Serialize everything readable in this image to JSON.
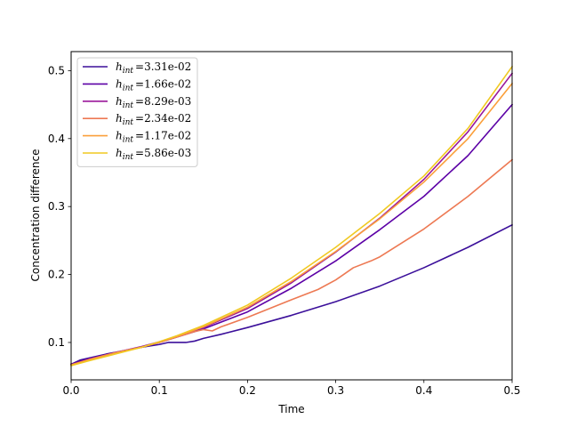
{
  "chart_data": {
    "type": "line",
    "title": "",
    "xlabel": "Time",
    "ylabel": "Concentration difference",
    "xlim": [
      0.0,
      0.5
    ],
    "ylim": [
      0.045,
      0.528
    ],
    "xticks": [
      0.0,
      0.1,
      0.2,
      0.3,
      0.4,
      0.5
    ],
    "xtick_labels": [
      "0.0",
      "0.1",
      "0.2",
      "0.3",
      "0.4",
      "0.5"
    ],
    "yticks": [
      0.1,
      0.2,
      0.3,
      0.4,
      0.5
    ],
    "ytick_labels": [
      "0.1",
      "0.2",
      "0.3",
      "0.4",
      "0.5"
    ],
    "grid": false,
    "legend_position": "top-left",
    "series": [
      {
        "name": "h_int =3.31e-02",
        "legend_symbol": "h",
        "legend_subscript": "int",
        "legend_value": "=3.31e-02",
        "color": "#3b0f9a",
        "points": [
          [
            0,
            0.068
          ],
          [
            0.01,
            0.074
          ],
          [
            0.02,
            0.077
          ],
          [
            0.04,
            0.083
          ],
          [
            0.06,
            0.088
          ],
          [
            0.08,
            0.093
          ],
          [
            0.1,
            0.097
          ],
          [
            0.11,
            0.1
          ],
          [
            0.12,
            0.1
          ],
          [
            0.13,
            0.1
          ],
          [
            0.14,
            0.102
          ],
          [
            0.15,
            0.106
          ],
          [
            0.17,
            0.112
          ],
          [
            0.2,
            0.122
          ],
          [
            0.25,
            0.14
          ],
          [
            0.3,
            0.16
          ],
          [
            0.35,
            0.183
          ],
          [
            0.4,
            0.21
          ],
          [
            0.45,
            0.24
          ],
          [
            0.5,
            0.273
          ]
        ]
      },
      {
        "name": "h_int =1.66e-02",
        "legend_symbol": "h",
        "legend_subscript": "int",
        "legend_value": "=1.66e-02",
        "color": "#5c01a6",
        "points": [
          [
            0,
            0.068
          ],
          [
            0.02,
            0.076
          ],
          [
            0.05,
            0.085
          ],
          [
            0.08,
            0.093
          ],
          [
            0.1,
            0.1
          ],
          [
            0.12,
            0.108
          ],
          [
            0.15,
            0.12
          ],
          [
            0.2,
            0.145
          ],
          [
            0.25,
            0.18
          ],
          [
            0.3,
            0.22
          ],
          [
            0.35,
            0.266
          ],
          [
            0.4,
            0.315
          ],
          [
            0.45,
            0.375
          ],
          [
            0.5,
            0.45
          ]
        ]
      },
      {
        "name": "h_int =8.29e-03",
        "legend_symbol": "h",
        "legend_subscript": "int",
        "legend_value": "=8.29e-03",
        "color": "#9a179b",
        "points": [
          [
            0,
            0.067
          ],
          [
            0.02,
            0.075
          ],
          [
            0.05,
            0.085
          ],
          [
            0.08,
            0.094
          ],
          [
            0.1,
            0.101
          ],
          [
            0.12,
            0.109
          ],
          [
            0.15,
            0.122
          ],
          [
            0.2,
            0.15
          ],
          [
            0.25,
            0.188
          ],
          [
            0.3,
            0.233
          ],
          [
            0.35,
            0.283
          ],
          [
            0.4,
            0.34
          ],
          [
            0.45,
            0.41
          ],
          [
            0.5,
            0.496
          ]
        ]
      },
      {
        "name": "h_int =2.34e-02",
        "legend_symbol": "h",
        "legend_subscript": "int",
        "legend_value": "=2.34e-02",
        "color": "#ed7953",
        "points": [
          [
            0,
            0.067
          ],
          [
            0.02,
            0.075
          ],
          [
            0.05,
            0.085
          ],
          [
            0.08,
            0.093
          ],
          [
            0.1,
            0.1
          ],
          [
            0.12,
            0.108
          ],
          [
            0.14,
            0.116
          ],
          [
            0.15,
            0.119
          ],
          [
            0.16,
            0.117
          ],
          [
            0.17,
            0.123
          ],
          [
            0.2,
            0.137
          ],
          [
            0.25,
            0.163
          ],
          [
            0.28,
            0.178
          ],
          [
            0.3,
            0.192
          ],
          [
            0.32,
            0.21
          ],
          [
            0.34,
            0.22
          ],
          [
            0.35,
            0.226
          ],
          [
            0.4,
            0.267
          ],
          [
            0.45,
            0.315
          ],
          [
            0.5,
            0.369
          ]
        ]
      },
      {
        "name": "h_int =1.17e-02",
        "legend_symbol": "h",
        "legend_subscript": "int",
        "legend_value": "=1.17e-02",
        "color": "#fb9f3a",
        "points": [
          [
            0,
            0.067
          ],
          [
            0.02,
            0.074
          ],
          [
            0.05,
            0.084
          ],
          [
            0.08,
            0.093
          ],
          [
            0.1,
            0.101
          ],
          [
            0.12,
            0.109
          ],
          [
            0.15,
            0.123
          ],
          [
            0.2,
            0.152
          ],
          [
            0.25,
            0.19
          ],
          [
            0.3,
            0.234
          ],
          [
            0.35,
            0.282
          ],
          [
            0.4,
            0.336
          ],
          [
            0.45,
            0.4
          ],
          [
            0.5,
            0.481
          ]
        ]
      },
      {
        "name": "h_int =5.86e-03",
        "legend_symbol": "h",
        "legend_subscript": "int",
        "legend_value": "=5.86e-03",
        "color": "#f0c921",
        "points": [
          [
            0,
            0.066
          ],
          [
            0.02,
            0.073
          ],
          [
            0.05,
            0.083
          ],
          [
            0.08,
            0.093
          ],
          [
            0.1,
            0.101
          ],
          [
            0.12,
            0.11
          ],
          [
            0.15,
            0.125
          ],
          [
            0.2,
            0.155
          ],
          [
            0.25,
            0.195
          ],
          [
            0.3,
            0.24
          ],
          [
            0.35,
            0.29
          ],
          [
            0.4,
            0.345
          ],
          [
            0.45,
            0.415
          ],
          [
            0.5,
            0.506
          ]
        ]
      }
    ]
  }
}
